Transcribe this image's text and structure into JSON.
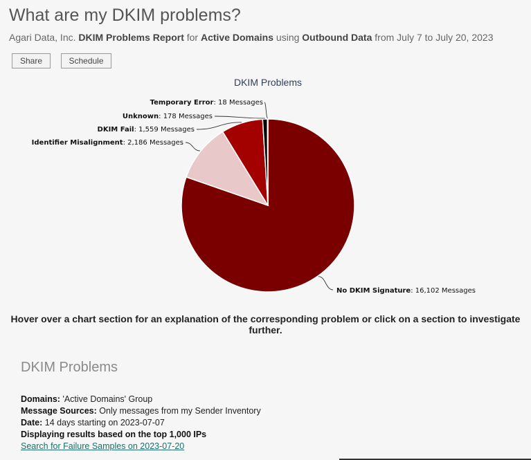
{
  "page": {
    "title": "What are my DKIM problems?",
    "subtitle": {
      "company": "Agari Data, Inc.",
      "report": "DKIM Problems Report",
      "for_text": "for",
      "domains": "Active Domains",
      "using_text": "using",
      "data": "Outbound Data",
      "range_text": "from July 7 to July 20, 2023"
    }
  },
  "toolbar": {
    "share_label": "Share",
    "schedule_label": "Schedule"
  },
  "chart_data": {
    "type": "pie",
    "title": "DKIM Problems",
    "unit": "Messages",
    "slices": [
      {
        "label": "No DKIM Signature",
        "value": 16102,
        "display": "16,102",
        "color": "#7a0000"
      },
      {
        "label": "Identifier Misalignment",
        "value": 2186,
        "display": "2,186",
        "color": "#e8c8c8"
      },
      {
        "label": "DKIM Fail",
        "value": 1559,
        "display": "1,559",
        "color": "#a30000"
      },
      {
        "label": "Unknown",
        "value": 178,
        "display": "178",
        "color": "#000000"
      },
      {
        "label": "Temporary Error",
        "value": 18,
        "display": "18",
        "color": "#888888"
      }
    ]
  },
  "hint": "Hover over a chart section for an explanation of the corresponding problem or click on a section to investigate further.",
  "details": {
    "heading": "DKIM Problems",
    "domains_label": "Domains:",
    "domains_value": "'Active Domains' Group",
    "sources_label": "Message Sources:",
    "sources_value": "Only messages from my Sender Inventory",
    "date_label": "Date:",
    "date_value": "14 days starting on 2023-07-07",
    "results_note": "Displaying results based on the top 1,000 IPs",
    "link_text": "Search for Failure Samples on 2023-07-20"
  }
}
